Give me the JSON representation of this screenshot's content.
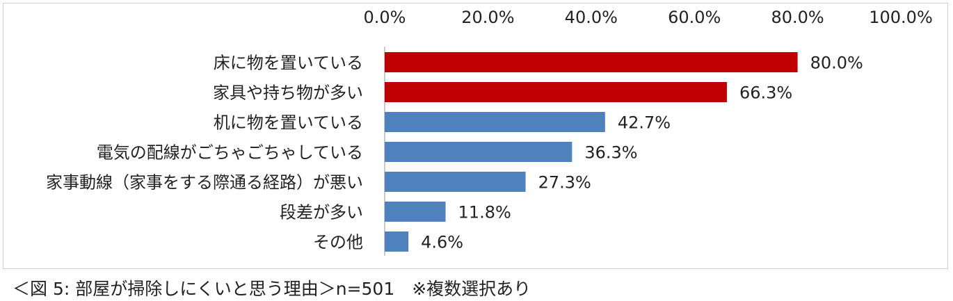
{
  "chart_data": {
    "type": "bar",
    "orientation": "horizontal",
    "categories": [
      "床に物を置いている",
      "家具や持ち物が多い",
      "机に物を置いている",
      "電気の配線がごちゃごちゃしている",
      "家事動線（家事をする際通る経路）が悪い",
      "段差が多い",
      "その他"
    ],
    "values": [
      80.0,
      66.3,
      42.7,
      36.3,
      27.3,
      11.8,
      4.6
    ],
    "value_labels": [
      "80.0%",
      "66.3%",
      "42.7%",
      "36.3%",
      "27.3%",
      "11.8%",
      "4.6%"
    ],
    "xlim": [
      0,
      100
    ],
    "x_ticks": [
      "0.0%",
      "20.0%",
      "40.0%",
      "60.0%",
      "80.0%",
      "100.0%"
    ],
    "x_axis_position": "top",
    "grid": false,
    "title": "",
    "xlabel": "",
    "ylabel": "",
    "colors": {
      "highlight": "#c00000",
      "default": "#4f81bd"
    },
    "bar_colors": [
      "#c00000",
      "#c00000",
      "#4f81bd",
      "#4f81bd",
      "#4f81bd",
      "#4f81bd",
      "#4f81bd"
    ]
  },
  "caption": "＜図 5:  部屋が掃除しにくいと思う理由＞n=501　※複数選択あり"
}
